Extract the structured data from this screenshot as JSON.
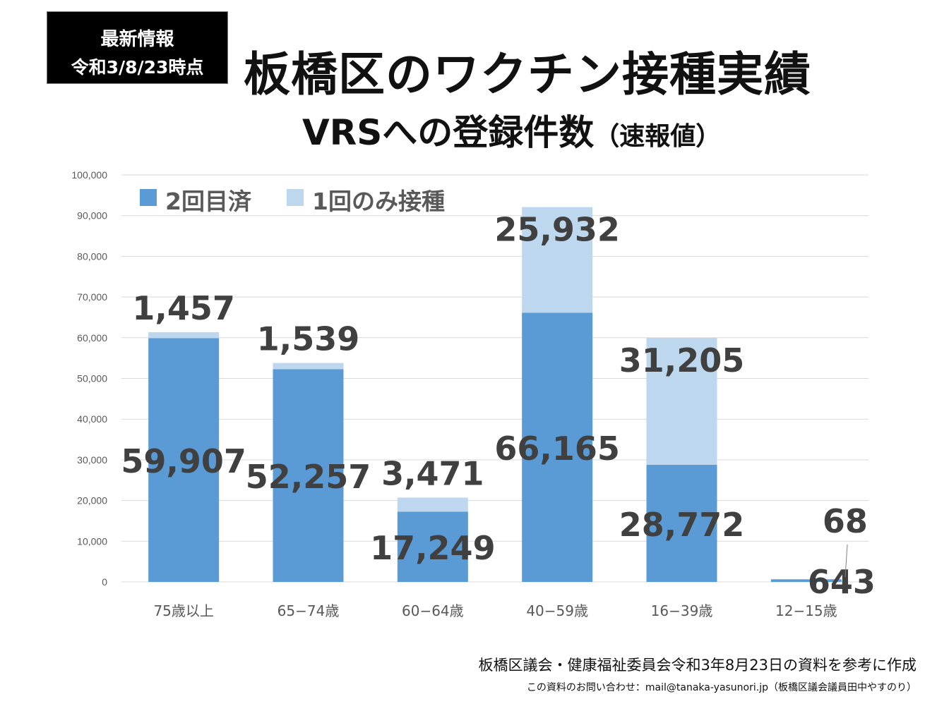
{
  "badge": {
    "line1": "最新情報",
    "line2": "令和3/8/23時点"
  },
  "header": {
    "title": "板橋区のワクチン接種実績",
    "subtitle": "VRSへの登録件数",
    "subtitle_note": "（速報値）"
  },
  "footer": {
    "source": "板橋区議会・健康福祉委員会令和3年8月23日の資料を参考に作成",
    "contact": "この資料のお問い合わせ：mail@tanaka-yasunori.jp（板橋区議会議員田中やすのり）"
  },
  "chart_data": {
    "type": "bar",
    "stacked": true,
    "categories": [
      "75歳以上",
      "65−74歳",
      "60−64歳",
      "40−59歳",
      "16−39歳",
      "12−15歳"
    ],
    "series": [
      {
        "name": "2回目済",
        "color": "#5b9bd5",
        "values": [
          59907,
          52257,
          17249,
          66165,
          28772,
          643
        ],
        "labels": [
          "59,907",
          "52,257",
          "17,249",
          "66,165",
          "28,772",
          "643"
        ]
      },
      {
        "name": "1回のみ接種",
        "color": "#bdd7ee",
        "values": [
          1457,
          1539,
          3471,
          25932,
          31205,
          68
        ],
        "labels": [
          "1,457",
          "1,539",
          "3,471",
          "25,932",
          "31,205",
          "68"
        ]
      }
    ],
    "ylim": [
      0,
      100000
    ],
    "yticks": [
      0,
      10000,
      20000,
      30000,
      40000,
      50000,
      60000,
      70000,
      80000,
      90000,
      100000
    ],
    "ytick_labels": [
      "0",
      "10,000",
      "20,000",
      "30,000",
      "40,000",
      "50,000",
      "60,000",
      "70,000",
      "80,000",
      "90,000",
      "100,000"
    ],
    "grid": true,
    "legend": "top-left"
  }
}
